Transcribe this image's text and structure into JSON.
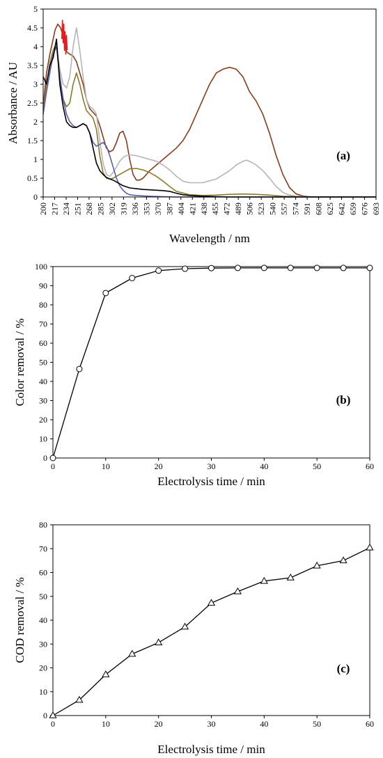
{
  "chart_data": [
    {
      "type": "line",
      "panel_label": "(a)",
      "xlabel": "Wavelength / nm",
      "ylabel": "Absorbance / AU",
      "xlim": [
        200,
        700
      ],
      "ylim": [
        0,
        5
      ],
      "yticks": [
        "0",
        "0.5",
        "1",
        "1.5",
        "2",
        "2.5",
        "3",
        "3.5",
        "4",
        "4.5",
        "5"
      ],
      "yticks_values": [
        0,
        0.5,
        1,
        1.5,
        2,
        2.5,
        3,
        3.5,
        4,
        4.5,
        5
      ],
      "xticks": [
        "200",
        "217",
        "234",
        "251",
        "268",
        "285",
        "302",
        "319",
        "336",
        "353",
        "370",
        "387",
        "404",
        "421",
        "438",
        "455",
        "472",
        "489",
        "506",
        "523",
        "540",
        "557",
        "574",
        "591",
        "608",
        "625",
        "642",
        "659",
        "676",
        "693"
      ],
      "grid": false,
      "series": [
        {
          "color": "#8b3a1a",
          "x": [
            200,
            205,
            210,
            215,
            218,
            222,
            226,
            230,
            232,
            234,
            236,
            240,
            245,
            250,
            255,
            260,
            265,
            270,
            275,
            280,
            285,
            290,
            295,
            300,
            305,
            310,
            315,
            320,
            325,
            330,
            335,
            340,
            345,
            350,
            355,
            360,
            370,
            380,
            390,
            400,
            410,
            420,
            430,
            440,
            450,
            460,
            470,
            480,
            490,
            500,
            505,
            510,
            520,
            530,
            540,
            550,
            560,
            570,
            580,
            590,
            600,
            620,
            650,
            700
          ],
          "y": [
            2.4,
            3.3,
            3.8,
            4.2,
            4.45,
            4.6,
            4.5,
            4.3,
            4.1,
            3.9,
            3.85,
            3.8,
            3.75,
            3.6,
            3.3,
            3.0,
            2.6,
            2.35,
            2.25,
            2.15,
            1.9,
            1.6,
            1.3,
            1.2,
            1.25,
            1.45,
            1.7,
            1.75,
            1.5,
            1.0,
            0.6,
            0.45,
            0.45,
            0.5,
            0.6,
            0.7,
            0.85,
            1.0,
            1.15,
            1.3,
            1.5,
            1.8,
            2.2,
            2.6,
            3.0,
            3.3,
            3.4,
            3.45,
            3.4,
            3.2,
            3.0,
            2.8,
            2.55,
            2.2,
            1.7,
            1.1,
            0.6,
            0.25,
            0.08,
            0.03,
            0.01,
            0,
            0,
            0
          ]
        },
        {
          "color": "#b5b5b5",
          "x": [
            200,
            205,
            210,
            215,
            220,
            225,
            230,
            235,
            240,
            245,
            250,
            255,
            260,
            265,
            270,
            275,
            280,
            285,
            290,
            295,
            300,
            305,
            310,
            315,
            320,
            325,
            330,
            340,
            350,
            360,
            370,
            380,
            390,
            400,
            410,
            420,
            440,
            460,
            480,
            490,
            500,
            505,
            510,
            520,
            530,
            540,
            550,
            560,
            570,
            580,
            600,
            650,
            700
          ],
          "y": [
            2.2,
            3.0,
            3.6,
            3.9,
            4.0,
            3.4,
            3.0,
            2.9,
            3.2,
            4.0,
            4.5,
            3.9,
            3.2,
            2.6,
            2.4,
            2.35,
            2.2,
            1.5,
            0.9,
            0.6,
            0.55,
            0.65,
            0.8,
            0.95,
            1.05,
            1.1,
            1.12,
            1.1,
            1.05,
            1.0,
            0.95,
            0.85,
            0.72,
            0.55,
            0.42,
            0.38,
            0.38,
            0.48,
            0.7,
            0.85,
            0.95,
            0.98,
            0.95,
            0.85,
            0.7,
            0.5,
            0.28,
            0.12,
            0.05,
            0.02,
            0.01,
            0,
            0
          ]
        },
        {
          "color": "#8a7a2a",
          "x": [
            200,
            205,
            210,
            215,
            220,
            225,
            230,
            235,
            240,
            245,
            250,
            255,
            260,
            265,
            270,
            275,
            280,
            285,
            290,
            295,
            300,
            305,
            310,
            315,
            320,
            325,
            330,
            340,
            350,
            360,
            370,
            380,
            390,
            400,
            420,
            440,
            460,
            480,
            500,
            520,
            540,
            560,
            580,
            600,
            650,
            700
          ],
          "y": [
            2.3,
            3.0,
            3.5,
            3.9,
            4.1,
            3.2,
            2.6,
            2.4,
            2.5,
            3.0,
            3.3,
            3.0,
            2.6,
            2.3,
            2.2,
            2.1,
            1.8,
            1.1,
            0.65,
            0.5,
            0.48,
            0.5,
            0.55,
            0.6,
            0.65,
            0.7,
            0.75,
            0.76,
            0.72,
            0.65,
            0.55,
            0.42,
            0.28,
            0.15,
            0.06,
            0.04,
            0.05,
            0.07,
            0.08,
            0.07,
            0.05,
            0.02,
            0.01,
            0,
            0,
            0
          ]
        },
        {
          "color": "#5a5fb0",
          "x": [
            200,
            205,
            210,
            215,
            220,
            225,
            230,
            235,
            240,
            245,
            250,
            255,
            260,
            265,
            270,
            275,
            280,
            285,
            290,
            295,
            300,
            305,
            310,
            315,
            320,
            325,
            330,
            340,
            350,
            360,
            380,
            400,
            450,
            500,
            600,
            700
          ],
          "y": [
            2.2,
            2.8,
            3.3,
            3.8,
            4.0,
            3.2,
            2.6,
            2.2,
            2.0,
            1.9,
            1.85,
            1.9,
            1.95,
            1.9,
            1.7,
            1.45,
            1.35,
            1.4,
            1.45,
            1.35,
            1.1,
            0.8,
            0.5,
            0.3,
            0.18,
            0.1,
            0.06,
            0.04,
            0.03,
            0.02,
            0.01,
            0,
            0,
            0,
            0,
            0
          ]
        },
        {
          "color": "#000000",
          "x": [
            200,
            205,
            210,
            215,
            220,
            225,
            230,
            235,
            240,
            245,
            250,
            255,
            260,
            265,
            270,
            275,
            280,
            285,
            290,
            295,
            300,
            305,
            310,
            320,
            330,
            340,
            350,
            360,
            370,
            380,
            390,
            400,
            410,
            420,
            440,
            460,
            480,
            500,
            600,
            700
          ],
          "y": [
            3.2,
            3.0,
            3.5,
            3.7,
            4.2,
            3.0,
            2.4,
            2.0,
            1.9,
            1.85,
            1.85,
            1.9,
            1.95,
            1.9,
            1.7,
            1.3,
            0.9,
            0.7,
            0.6,
            0.52,
            0.48,
            0.45,
            0.4,
            0.3,
            0.24,
            0.22,
            0.2,
            0.19,
            0.18,
            0.17,
            0.15,
            0.1,
            0.06,
            0.04,
            0.02,
            0.01,
            0,
            0,
            0,
            0
          ]
        },
        {
          "color": "#e02020",
          "x": [
            228,
            229,
            230,
            231,
            232,
            233,
            234,
            235,
            236
          ],
          "y": [
            4.2,
            4.7,
            4.1,
            4.6,
            3.9,
            4.4,
            3.8,
            4.3,
            3.9
          ]
        }
      ]
    },
    {
      "type": "line",
      "panel_label": "(b)",
      "xlabel": "Electrolysis time / min",
      "ylabel": "Color removal / %",
      "xlim": [
        0,
        60
      ],
      "ylim": [
        0,
        100
      ],
      "xticks": [
        "0",
        "10",
        "20",
        "30",
        "40",
        "50",
        "60"
      ],
      "yticks": [
        "0",
        "10",
        "20",
        "30",
        "40",
        "50",
        "60",
        "70",
        "80",
        "90",
        "100"
      ],
      "marker": "circle",
      "series": [
        {
          "x": [
            0,
            5,
            10,
            15,
            20,
            25,
            30,
            35,
            40,
            45,
            50,
            55,
            60
          ],
          "y": [
            0,
            46.5,
            86.2,
            94,
            97.9,
            98.9,
            99.2,
            99.3,
            99.3,
            99.3,
            99.3,
            99.3,
            99.3
          ]
        }
      ]
    },
    {
      "type": "line",
      "panel_label": "(c)",
      "xlabel": "Electrolysis time / min",
      "ylabel": "COD removal / %",
      "xlim": [
        0,
        60
      ],
      "ylim": [
        0,
        80
      ],
      "xticks": [
        "0",
        "10",
        "20",
        "30",
        "40",
        "50",
        "60"
      ],
      "yticks": [
        "0",
        "10",
        "20",
        "30",
        "40",
        "50",
        "60",
        "70",
        "80"
      ],
      "marker": "triangle",
      "series": [
        {
          "x": [
            0,
            5,
            10,
            15,
            20,
            25,
            30,
            35,
            40,
            45,
            50,
            55,
            60
          ],
          "y": [
            0,
            6.5,
            17.2,
            25.8,
            30.6,
            37.2,
            47.2,
            52,
            56.4,
            57.8,
            62.8,
            65,
            70.4
          ]
        }
      ]
    }
  ]
}
